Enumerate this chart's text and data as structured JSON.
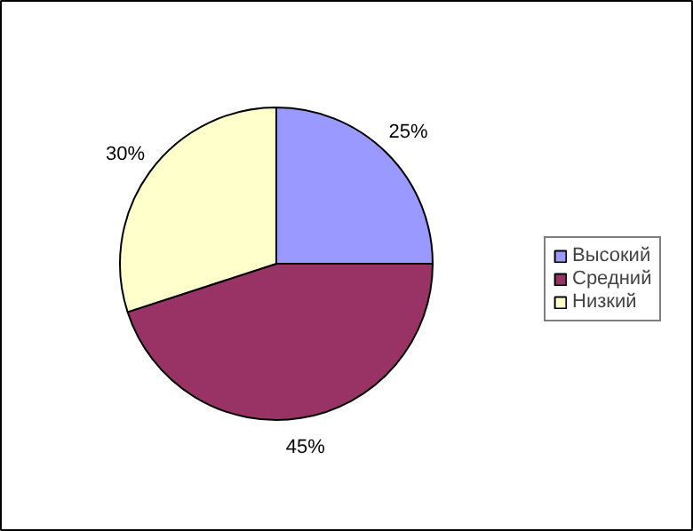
{
  "chart_data": {
    "type": "pie",
    "categories": [
      "Высокий",
      "Средний",
      "Низкий"
    ],
    "values": [
      25,
      45,
      30
    ],
    "colors": [
      "#9999ff",
      "#993366",
      "#ffffcc"
    ],
    "value_labels": [
      "25%",
      "45%",
      "30%"
    ],
    "legend": "right"
  }
}
